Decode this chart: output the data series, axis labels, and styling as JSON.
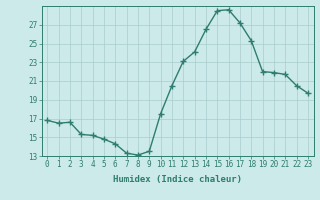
{
  "x": [
    0,
    1,
    2,
    3,
    4,
    5,
    6,
    7,
    8,
    9,
    10,
    11,
    12,
    13,
    14,
    15,
    16,
    17,
    18,
    19,
    20,
    21,
    22,
    23
  ],
  "y": [
    16.8,
    16.5,
    16.6,
    15.3,
    15.2,
    14.8,
    14.3,
    13.3,
    13.1,
    13.5,
    17.5,
    20.5,
    23.1,
    24.1,
    26.5,
    28.5,
    28.6,
    27.2,
    25.3,
    22.0,
    21.9,
    21.7,
    20.5,
    19.7
  ],
  "line_color": "#2e7d6e",
  "marker": "+",
  "markersize": 4,
  "linewidth": 1.0,
  "bg_color": "#cceaea",
  "grid_color": "#aacccc",
  "xlabel": "Humidex (Indice chaleur)",
  "xlim": [
    -0.5,
    23.5
  ],
  "ylim": [
    13,
    29
  ],
  "yticks": [
    13,
    15,
    17,
    19,
    21,
    23,
    25,
    27
  ],
  "xticks": [
    0,
    1,
    2,
    3,
    4,
    5,
    6,
    7,
    8,
    9,
    10,
    11,
    12,
    13,
    14,
    15,
    16,
    17,
    18,
    19,
    20,
    21,
    22,
    23
  ],
  "xtick_labels": [
    "0",
    "1",
    "2",
    "3",
    "4",
    "5",
    "6",
    "7",
    "8",
    "9",
    "10",
    "11",
    "12",
    "13",
    "14",
    "15",
    "16",
    "17",
    "18",
    "19",
    "20",
    "21",
    "22",
    "23"
  ],
  "tick_color": "#2e7d6e",
  "label_fontsize": 6.5,
  "tick_fontsize": 5.5
}
